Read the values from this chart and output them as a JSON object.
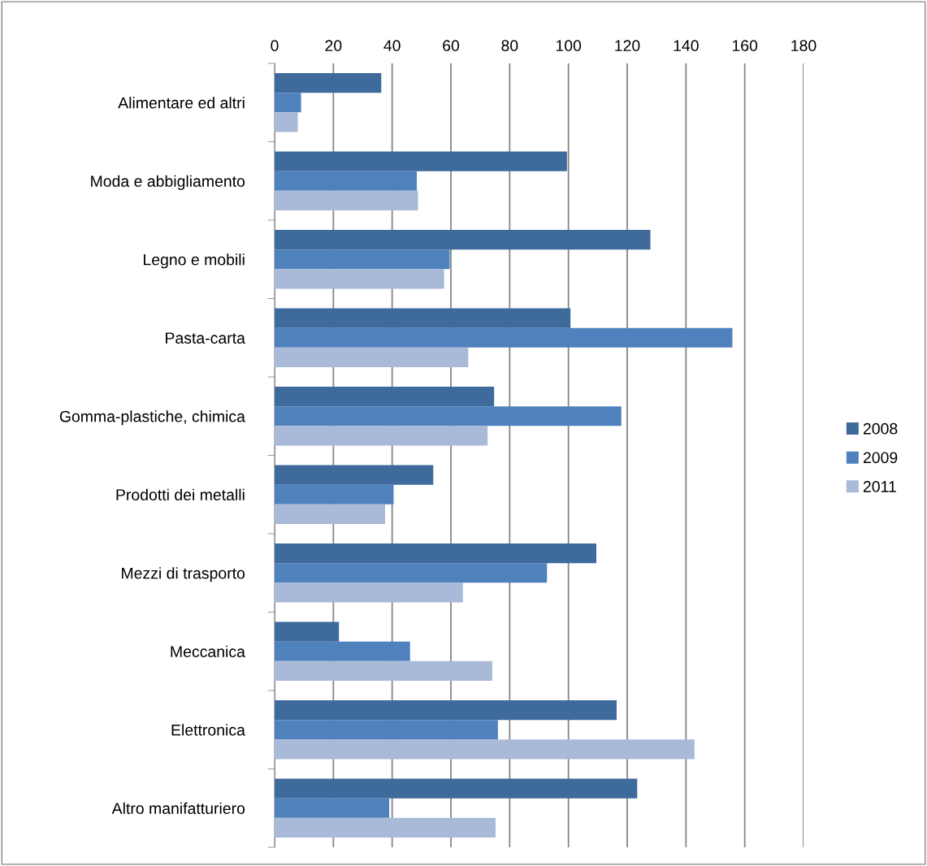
{
  "chart_data": {
    "type": "bar",
    "orientation": "horizontal",
    "categories": [
      "Alimentare ed altri",
      "Moda e abbigliamento",
      "Legno e mobili",
      "Pasta-carta",
      "Gomma-plastiche, chimica",
      "Prodotti dei metalli",
      "Mezzi di trasporto",
      "Meccanica",
      "Elettronica",
      "Altro manifatturiero"
    ],
    "series": [
      {
        "name": "2008",
        "color": "#3f6a9c",
        "values": [
          36.3,
          99.5,
          127.9,
          100.7,
          74.7,
          54.0,
          109.5,
          21.9,
          116.4,
          123.4
        ]
      },
      {
        "name": "2009",
        "color": "#4f81bd",
        "values": [
          9.0,
          48.4,
          59.6,
          155.8,
          118.0,
          40.5,
          92.7,
          46.1,
          76.0,
          39.0
        ]
      },
      {
        "name": "2011",
        "color": "#a9b9d8",
        "values": [
          7.9,
          48.8,
          57.7,
          65.9,
          72.5,
          37.6,
          64.1,
          74.1,
          142.9,
          75.2
        ]
      }
    ],
    "xlim": [
      0,
      180
    ],
    "xticks": [
      0,
      20,
      40,
      60,
      80,
      100,
      120,
      140,
      160,
      180
    ],
    "grid": "x",
    "legend": "right"
  }
}
